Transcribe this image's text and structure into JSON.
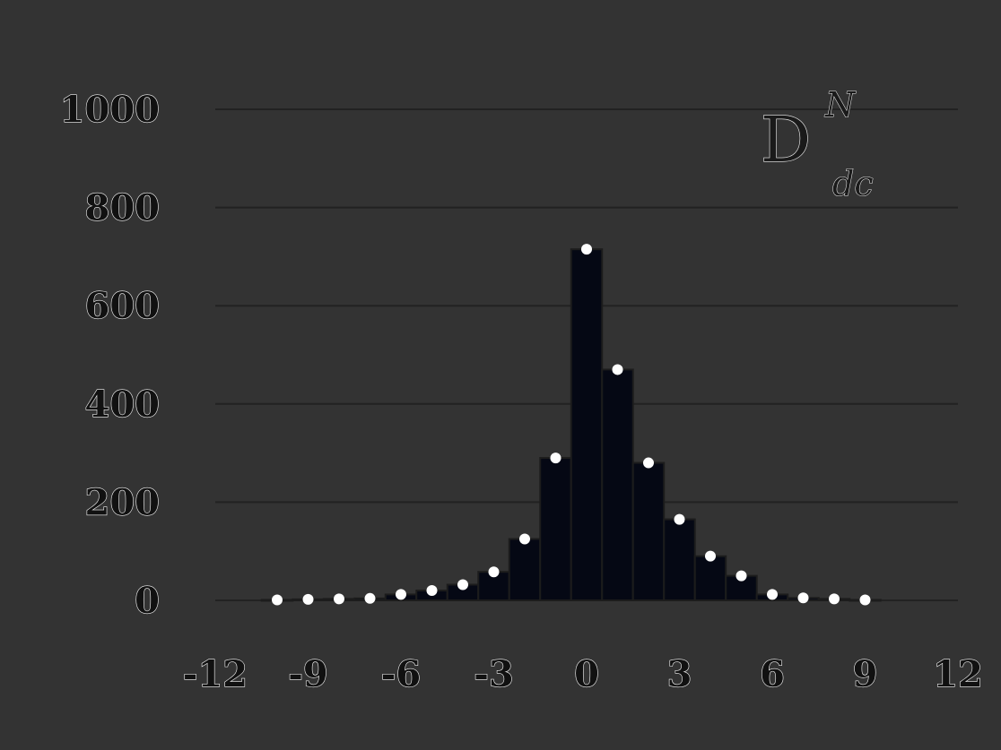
{
  "chart_data": {
    "type": "bar",
    "title": "",
    "xlabel": "",
    "ylabel": "",
    "legend": {
      "label": "D",
      "superscript": "N",
      "subscript": "dc",
      "position": "top-right"
    },
    "xlim": [
      -12,
      12
    ],
    "ylim": [
      0,
      1000
    ],
    "xticks": [
      "-12",
      "-9",
      "-6",
      "-3",
      "0",
      "3",
      "6",
      "9",
      "12"
    ],
    "yticks": [
      "0",
      "200",
      "400",
      "600",
      "800",
      "1000"
    ],
    "grid": true,
    "bin_width": 1,
    "bins": [
      {
        "x": -10,
        "value": 1
      },
      {
        "x": -9,
        "value": 2
      },
      {
        "x": -8,
        "value": 3
      },
      {
        "x": -7,
        "value": 4
      },
      {
        "x": -6,
        "value": 12
      },
      {
        "x": -5,
        "value": 20
      },
      {
        "x": -4,
        "value": 32
      },
      {
        "x": -3,
        "value": 58
      },
      {
        "x": -2,
        "value": 125
      },
      {
        "x": -1,
        "value": 290
      },
      {
        "x": 0,
        "value": 715
      },
      {
        "x": 1,
        "value": 470
      },
      {
        "x": 2,
        "value": 280
      },
      {
        "x": 3,
        "value": 165
      },
      {
        "x": 4,
        "value": 90
      },
      {
        "x": 5,
        "value": 50
      },
      {
        "x": 6,
        "value": 12
      },
      {
        "x": 7,
        "value": 5
      },
      {
        "x": 8,
        "value": 3
      },
      {
        "x": 9,
        "value": 1
      }
    ],
    "colors": {
      "background": "#333333",
      "bar": "#050814",
      "grid": "#222222",
      "marker": "#ffffff"
    }
  }
}
